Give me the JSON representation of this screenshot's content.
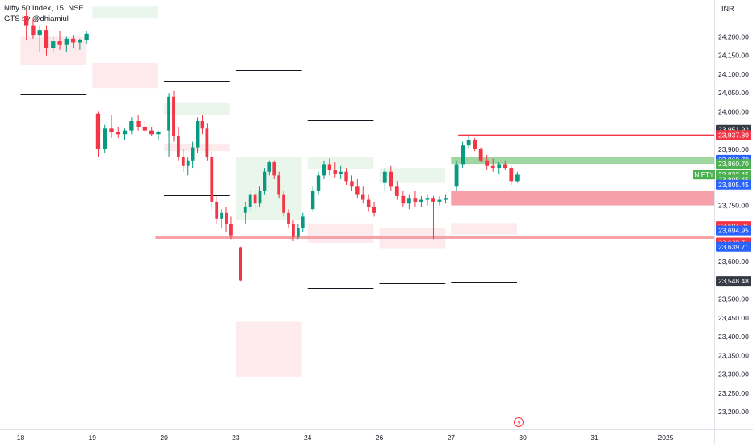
{
  "header": {
    "title": "Nifty 50 Index, 15, NSE",
    "subtitle": "GTS by @dhiamiul"
  },
  "chart_data": {
    "type": "candlestick",
    "currency": "INR",
    "ylim": [
      23175,
      24280
    ],
    "y_ticks": [
      "24,200.00",
      "24,150.00",
      "24,100.00",
      "24,050.00",
      "24,000.00",
      "23,900.00",
      "23,750.00",
      "23,650.00",
      "23,600.00",
      "23,500.00",
      "23,450.00",
      "23,400.00",
      "23,350.00",
      "23,300.00",
      "23,250.00",
      "23,200.00"
    ],
    "x_ticks": [
      {
        "label": "18",
        "day": 0
      },
      {
        "label": "19",
        "day": 1
      },
      {
        "label": "20",
        "day": 2
      },
      {
        "label": "23",
        "day": 3
      },
      {
        "label": "24",
        "day": 4
      },
      {
        "label": "26",
        "day": 5
      },
      {
        "label": "27",
        "day": 6
      },
      {
        "label": "30",
        "day": 7
      },
      {
        "label": "31",
        "day": 8
      },
      {
        "label": "2025",
        "day": 9
      }
    ],
    "price_tags": [
      {
        "label": "23,951.92",
        "value": 23951.92,
        "color": "#363a45"
      },
      {
        "label": "23,937.80",
        "value": 23937.8,
        "color": "#f23645"
      },
      {
        "label": "23,860.70",
        "value": 23872,
        "color": "#2962ff"
      },
      {
        "label": "23,860.70",
        "value": 23860.7,
        "color": "#4caf50"
      },
      {
        "label": "23,832.45",
        "value": 23832.45,
        "color": "#4caf50",
        "prefix": "NIFTY"
      },
      {
        "label": "23,805.45",
        "value": 23819,
        "color": "#4caf50"
      },
      {
        "label": "23,805.45",
        "value": 23805.45,
        "color": "#2962ff"
      },
      {
        "label": "23,694.95",
        "value": 23694.95,
        "color": "#f23645"
      },
      {
        "label": "23,694.95",
        "value": 23683,
        "color": "#2962ff"
      },
      {
        "label": "23,639.71",
        "value": 23651,
        "color": "#f23645"
      },
      {
        "label": "23,639.71",
        "value": 23639.71,
        "color": "#2962ff"
      },
      {
        "label": "23,548.48",
        "value": 23548.48,
        "color": "#363a45"
      }
    ],
    "horizontal_levels": [
      {
        "value": 23937.8,
        "day_from": 6.1,
        "day_to": 9.68,
        "color": "#f23645"
      },
      {
        "value": 23665,
        "day_from": 1.88,
        "day_to": 9.68,
        "color": "#f7a1a8"
      }
    ],
    "level_segments": [
      {
        "value": 24045,
        "day_from": 0,
        "day_to": 0.92
      },
      {
        "value": 24082,
        "day_from": 2.0,
        "day_to": 2.92
      },
      {
        "value": 24110,
        "day_from": 3.0,
        "day_to": 3.92
      },
      {
        "value": 23778,
        "day_from": 2.0,
        "day_to": 2.92
      },
      {
        "value": 23978,
        "day_from": 4.0,
        "day_to": 4.92
      },
      {
        "value": 23912,
        "day_from": 5.0,
        "day_to": 5.92
      },
      {
        "value": 23948,
        "day_from": 6.0,
        "day_to": 6.92
      },
      {
        "value": 23530,
        "day_from": 4.0,
        "day_to": 4.92
      },
      {
        "value": 23542,
        "day_from": 5.0,
        "day_to": 5.92
      },
      {
        "value": 23546,
        "day_from": 6.0,
        "day_to": 6.92
      }
    ],
    "zones": [
      {
        "day_from": 1.0,
        "day_to": 1.92,
        "top": 24280,
        "bottom": 24250,
        "kind": "green"
      },
      {
        "day_from": 0.0,
        "day_to": 0.92,
        "top": 24200,
        "bottom": 24125,
        "kind": "red"
      },
      {
        "day_from": 1.0,
        "day_to": 1.92,
        "top": 24130,
        "bottom": 24063,
        "kind": "red"
      },
      {
        "day_from": 2.0,
        "day_to": 2.92,
        "top": 24025,
        "bottom": 23992,
        "kind": "green"
      },
      {
        "day_from": 2.0,
        "day_to": 2.92,
        "top": 23915,
        "bottom": 23895,
        "kind": "red"
      },
      {
        "day_from": 3.0,
        "day_to": 3.92,
        "top": 23880,
        "bottom": 23712,
        "kind": "green"
      },
      {
        "day_from": 4.0,
        "day_to": 4.92,
        "top": 23880,
        "bottom": 23848,
        "kind": "green"
      },
      {
        "day_from": 5.0,
        "day_to": 5.92,
        "top": 23850,
        "bottom": 23810,
        "kind": "green"
      },
      {
        "day_from": 4.0,
        "day_to": 4.92,
        "top": 23702,
        "bottom": 23650,
        "kind": "red"
      },
      {
        "day_from": 5.0,
        "day_to": 5.92,
        "top": 23690,
        "bottom": 23636,
        "kind": "red"
      },
      {
        "day_from": 6.0,
        "day_to": 6.92,
        "top": 23703,
        "bottom": 23673,
        "kind": "red"
      },
      {
        "day_from": 3.0,
        "day_to": 3.92,
        "top": 23440,
        "bottom": 23293,
        "kind": "red"
      },
      {
        "day_from": 6.0,
        "day_to": 9.68,
        "top": 23880,
        "bottom": 23860.7,
        "kind": "green-solid"
      },
      {
        "day_from": 6.0,
        "day_to": 9.68,
        "top": 23790,
        "bottom": 23750,
        "kind": "red-solid"
      }
    ],
    "series": [
      {
        "day": 0,
        "ohlc": [
          [
            24255,
            24272,
            24190,
            24230
          ],
          [
            24230,
            24250,
            24195,
            24205
          ],
          [
            24205,
            24230,
            24160,
            24218
          ],
          [
            24218,
            24230,
            24150,
            24170
          ],
          [
            24170,
            24200,
            24160,
            24188
          ],
          [
            24188,
            24215,
            24165,
            24178
          ],
          [
            24178,
            24200,
            24160,
            24195
          ],
          [
            24195,
            24205,
            24170,
            24185
          ],
          [
            24185,
            24195,
            24165,
            24192
          ],
          [
            24192,
            24215,
            24180,
            24208
          ]
        ]
      },
      {
        "day": 1,
        "ohlc": [
          [
            23995,
            24000,
            23880,
            23900
          ],
          [
            23900,
            23965,
            23890,
            23955
          ],
          [
            23955,
            23990,
            23930,
            23945
          ],
          [
            23945,
            23960,
            23930,
            23940
          ],
          [
            23940,
            23955,
            23925,
            23950
          ],
          [
            23950,
            23985,
            23940,
            23975
          ],
          [
            23975,
            23990,
            23950,
            23960
          ],
          [
            23960,
            23975,
            23945,
            23950
          ],
          [
            23950,
            23960,
            23935,
            23940
          ],
          [
            23940,
            23950,
            23925,
            23945
          ]
        ]
      },
      {
        "day": 2,
        "ohlc": [
          [
            23950,
            24050,
            23880,
            24040
          ],
          [
            24040,
            24055,
            23920,
            23935
          ],
          [
            23935,
            23960,
            23870,
            23880
          ],
          [
            23880,
            23900,
            23840,
            23855
          ],
          [
            23855,
            23880,
            23830,
            23870
          ],
          [
            23870,
            23920,
            23850,
            23905
          ],
          [
            23905,
            23985,
            23890,
            23975
          ],
          [
            23975,
            23990,
            23940,
            23955
          ],
          [
            23955,
            23970,
            23870,
            23880
          ],
          [
            23880,
            23895,
            23740,
            23760
          ],
          [
            23760,
            23775,
            23700,
            23715
          ],
          [
            23715,
            23740,
            23690,
            23730
          ],
          [
            23730,
            23745,
            23680,
            23700
          ],
          [
            23700,
            23720,
            23660,
            23670
          ]
        ]
      },
      {
        "day": 3,
        "ohlc": [
          [
            23638,
            23640,
            23548,
            23550
          ],
          [
            23730,
            23760,
            23700,
            23745
          ],
          [
            23745,
            23790,
            23735,
            23780
          ],
          [
            23780,
            23790,
            23740,
            23755
          ],
          [
            23755,
            23800,
            23745,
            23790
          ],
          [
            23790,
            23850,
            23780,
            23840
          ],
          [
            23840,
            23870,
            23830,
            23865
          ],
          [
            23865,
            23870,
            23820,
            23830
          ],
          [
            23830,
            23840,
            23770,
            23780
          ],
          [
            23780,
            23790,
            23720,
            23730
          ],
          [
            23730,
            23740,
            23690,
            23700
          ],
          [
            23700,
            23710,
            23655,
            23668
          ],
          [
            23668,
            23700,
            23660,
            23690
          ],
          [
            23690,
            23730,
            23680,
            23720
          ]
        ]
      },
      {
        "day": 4,
        "ohlc": [
          [
            23740,
            23800,
            23735,
            23790
          ],
          [
            23790,
            23840,
            23780,
            23830
          ],
          [
            23830,
            23870,
            23820,
            23860
          ],
          [
            23860,
            23875,
            23830,
            23845
          ],
          [
            23845,
            23865,
            23825,
            23835
          ],
          [
            23835,
            23855,
            23820,
            23840
          ],
          [
            23840,
            23850,
            23805,
            23815
          ],
          [
            23815,
            23830,
            23790,
            23800
          ],
          [
            23800,
            23820,
            23770,
            23780
          ],
          [
            23780,
            23800,
            23755,
            23765
          ],
          [
            23765,
            23780,
            23735,
            23745
          ],
          [
            23745,
            23760,
            23720,
            23730
          ]
        ]
      },
      {
        "day": 5,
        "ohlc": [
          [
            23810,
            23850,
            23790,
            23840
          ],
          [
            23840,
            23855,
            23790,
            23800
          ],
          [
            23800,
            23815,
            23765,
            23775
          ],
          [
            23775,
            23790,
            23745,
            23755
          ],
          [
            23755,
            23780,
            23740,
            23770
          ],
          [
            23770,
            23790,
            23745,
            23760
          ],
          [
            23760,
            23775,
            23745,
            23765
          ],
          [
            23765,
            23780,
            23750,
            23770
          ],
          [
            23770,
            23775,
            23660,
            23760
          ],
          [
            23760,
            23775,
            23750,
            23765
          ],
          [
            23765,
            23780,
            23755,
            23770
          ]
        ]
      },
      {
        "day": 6,
        "ohlc": [
          [
            23800,
            23870,
            23790,
            23860
          ],
          [
            23860,
            23920,
            23850,
            23910
          ],
          [
            23910,
            23935,
            23900,
            23925
          ],
          [
            23925,
            23930,
            23895,
            23900
          ],
          [
            23900,
            23905,
            23865,
            23870
          ],
          [
            23870,
            23885,
            23845,
            23855
          ],
          [
            23855,
            23875,
            23840,
            23850
          ],
          [
            23850,
            23865,
            23835,
            23860
          ],
          [
            23860,
            23870,
            23845,
            23850
          ],
          [
            23850,
            23855,
            23805,
            23815
          ],
          [
            23815,
            23840,
            23810,
            23832
          ]
        ]
      }
    ]
  }
}
